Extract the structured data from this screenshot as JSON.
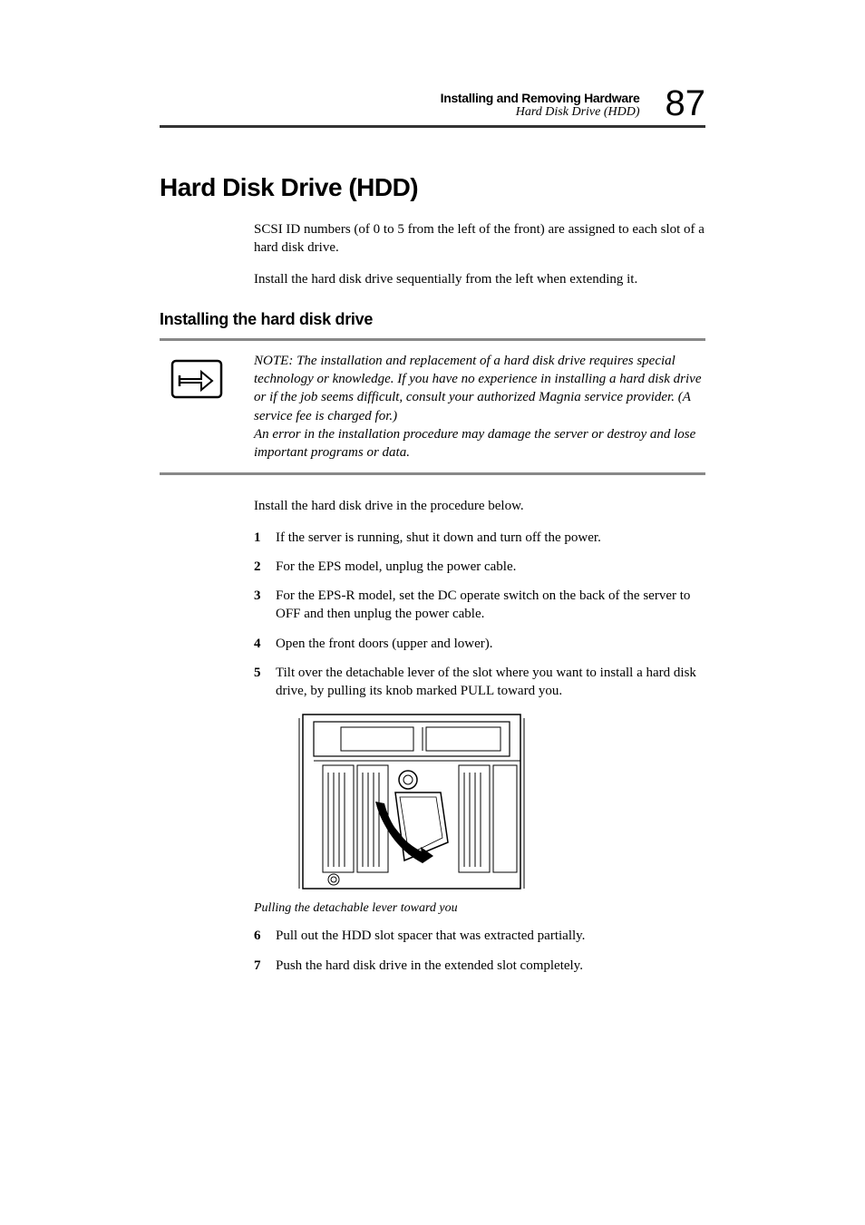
{
  "header": {
    "title": "Installing and Removing Hardware",
    "subtitle": "Hard Disk Drive (HDD)",
    "page_number": "87"
  },
  "main_heading": "Hard Disk Drive (HDD)",
  "intro_paragraphs": [
    "SCSI ID numbers (of 0 to 5 from the left of the front) are assigned to each slot of a hard disk drive.",
    "Install the hard disk drive sequentially from the left when extending it."
  ],
  "sub_heading": "Installing the hard disk drive",
  "note": {
    "text": "NOTE: The installation and replacement of a hard disk drive requires special technology or knowledge.  If you have no experience in installing a hard disk drive or if the job seems difficult, consult your authorized Magnia service provider. (A service fee is charged for.)\nAn error in the installation procedure may damage the server or destroy and lose important programs or data."
  },
  "pre_list_text": "Install the hard disk drive in the procedure below.",
  "steps": [
    "If the server is running, shut it down and turn off the power.",
    "For the EPS model, unplug the power cable.",
    "For the EPS-R model, set the DC operate switch on the back of the server to OFF and then unplug the power cable.",
    "Open the front doors (upper and lower).",
    "Tilt over the detachable lever of the slot where you want to install a hard disk drive, by pulling its knob marked PULL toward you."
  ],
  "figure": {
    "caption": "Pulling the detachable lever toward you"
  },
  "steps_after": [
    "Pull out the HDD slot spacer that was extracted partially.",
    "Push the hard disk drive in the extended slot completely."
  ],
  "colors": {
    "text": "#000000",
    "rule_dark": "#333333",
    "rule_light": "#888888",
    "background": "#ffffff"
  }
}
